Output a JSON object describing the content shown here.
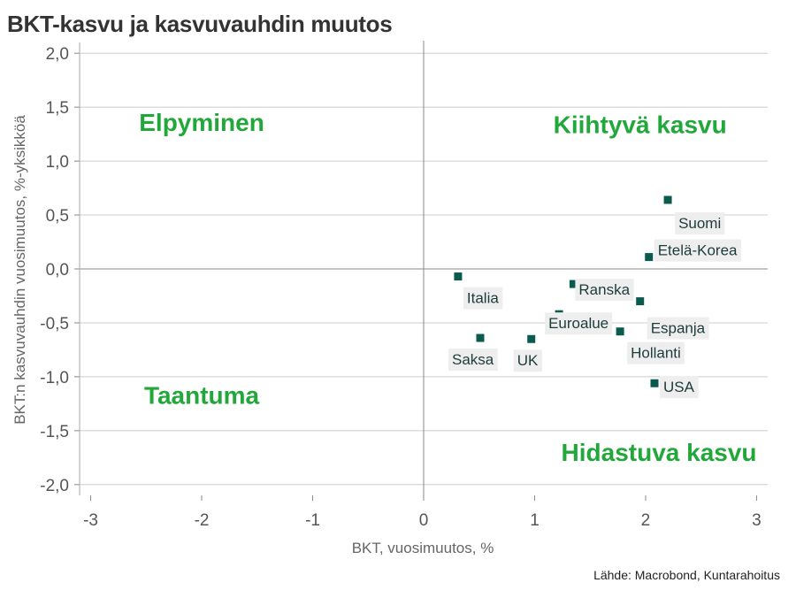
{
  "title": "BKT-kasvu ja kasvuvauhdin muutos",
  "source": "Lähde: Macrobond, Kuntarahoitus",
  "colors": {
    "marker": "#0b5a4e",
    "quadrant_text": "#22a83a",
    "label_bg": "#eeeeee",
    "grid": "#cccccc"
  },
  "chart_data": {
    "type": "scatter",
    "xlabel": "BKT, vuosimuutos, %",
    "ylabel": "BKT:n kasvuvauhdin vuosimuutos, %-yksikköä",
    "xlim": [
      -3.1,
      3.1
    ],
    "ylim": [
      -2.1,
      2.1
    ],
    "xticks": [
      -3,
      -2,
      -1,
      0,
      1,
      2,
      3
    ],
    "xtick_labels": [
      "-3",
      "-2",
      "-1",
      "0",
      "1",
      "2",
      "3"
    ],
    "yticks": [
      2,
      1.5,
      1,
      0.5,
      0,
      -0.5,
      -1,
      -1.5,
      -2
    ],
    "ytick_labels": [
      "2,0",
      "1,5",
      "1,0",
      "0,5",
      "0,0",
      "-0,5",
      "-1,0",
      "-1,5",
      "-2,0"
    ],
    "grid": "horizontal",
    "quadrant_labels": [
      {
        "text": "Elpyminen",
        "x": -2.0,
        "y": 1.28
      },
      {
        "text": "Kiihtyvä kasvu",
        "x": 1.95,
        "y": 1.26
      },
      {
        "text": "Taantuma",
        "x": -2.0,
        "y": -1.25
      },
      {
        "text": "Hidastuva kasvu",
        "x": 2.12,
        "y": -1.78
      }
    ],
    "points": [
      {
        "label": "Suomi",
        "x": 2.2,
        "y": 0.64
      },
      {
        "label": "Etelä-Korea",
        "x": 2.03,
        "y": 0.11
      },
      {
        "label": "Italia",
        "x": 0.31,
        "y": -0.07
      },
      {
        "label": "Ranska",
        "x": 1.35,
        "y": -0.14
      },
      {
        "label": "Espanja",
        "x": 1.95,
        "y": -0.3
      },
      {
        "label": "Euroalue",
        "x": 1.22,
        "y": -0.42
      },
      {
        "label": "Hollanti",
        "x": 1.77,
        "y": -0.58
      },
      {
        "label": "Saksa",
        "x": 0.51,
        "y": -0.64
      },
      {
        "label": "UK",
        "x": 0.97,
        "y": -0.65
      },
      {
        "label": "USA",
        "x": 2.08,
        "y": -1.06
      }
    ]
  }
}
